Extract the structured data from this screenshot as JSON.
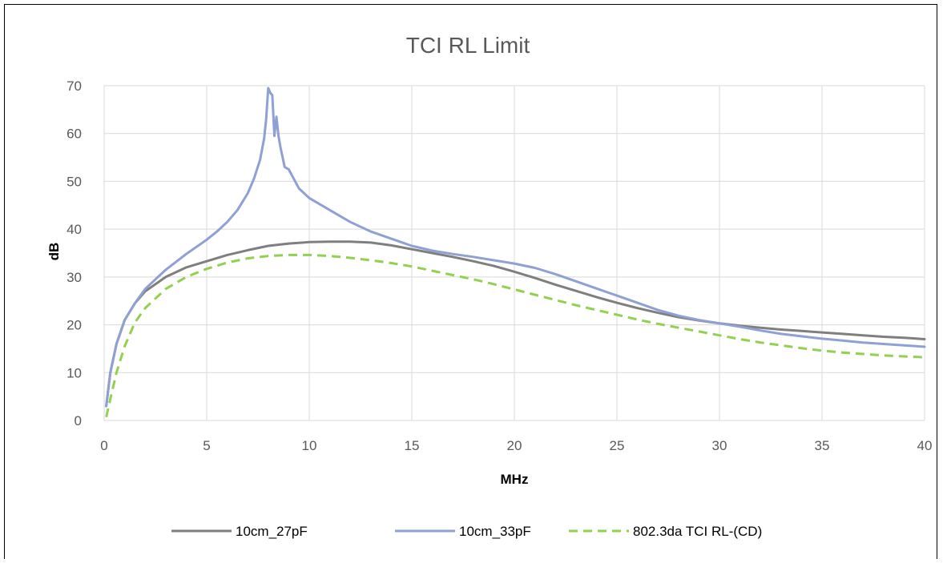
{
  "chart_data": {
    "type": "line",
    "title": "TCI RL Limit",
    "xlabel": "MHz",
    "ylabel": "dB",
    "xlim": [
      0,
      40
    ],
    "ylim": [
      0,
      70
    ],
    "x_ticks": [
      0,
      5,
      10,
      15,
      20,
      25,
      30,
      35,
      40
    ],
    "y_ticks": [
      0,
      10,
      20,
      30,
      40,
      50,
      60,
      70
    ],
    "grid": true,
    "legend_position": "bottom",
    "series": [
      {
        "name": "10cm_27pF",
        "color": "#7f7f7f",
        "style": "solid",
        "x": [
          0.1,
          0.3,
          0.6,
          1,
          1.5,
          2,
          3,
          4,
          5,
          6,
          7,
          8,
          9,
          10,
          11,
          12,
          13,
          14,
          15,
          16,
          17,
          18,
          19,
          20,
          21,
          22,
          23,
          24,
          25,
          26,
          27,
          28,
          29,
          30,
          31,
          32,
          33,
          34,
          35,
          36,
          37,
          38,
          39,
          40
        ],
        "y": [
          3,
          10,
          16,
          21,
          24.5,
          27,
          30,
          32,
          33.3,
          34.6,
          35.6,
          36.5,
          37,
          37.3,
          37.4,
          37.4,
          37.2,
          36.6,
          35.8,
          35,
          34.2,
          33.3,
          32.3,
          31.1,
          29.8,
          28.4,
          27.1,
          25.8,
          24.6,
          23.5,
          22.5,
          21.6,
          20.9,
          20.3,
          19.8,
          19.4,
          19,
          18.7,
          18.4,
          18.1,
          17.8,
          17.5,
          17.3,
          17
        ]
      },
      {
        "name": "10cm_33pF",
        "color": "#8ea0d4",
        "style": "solid",
        "x": [
          0.1,
          0.3,
          0.6,
          1,
          1.5,
          2,
          3,
          4,
          5,
          5.5,
          6,
          6.5,
          7,
          7.3,
          7.6,
          7.8,
          7.9,
          8.0,
          8.1,
          8.2,
          8.3,
          8.4,
          8.5,
          8.6,
          8.8,
          9,
          9.5,
          10,
          11,
          12,
          13,
          14,
          15,
          16,
          17,
          18,
          19,
          20,
          21,
          22,
          23,
          24,
          25,
          26,
          27,
          28,
          29,
          30,
          31,
          32,
          33,
          34,
          35,
          36,
          37,
          38,
          39,
          40
        ],
        "y": [
          3,
          10,
          16,
          21,
          24.5,
          27.5,
          31.5,
          34.8,
          37.8,
          39.5,
          41.5,
          44,
          47.5,
          50.5,
          54.5,
          59,
          63,
          69.5,
          68.5,
          68,
          59.5,
          63.5,
          59.5,
          57,
          53,
          52.5,
          48.5,
          46.5,
          44,
          41.5,
          39.5,
          38,
          36.5,
          35.5,
          34.8,
          34.2,
          33.5,
          32.8,
          31.9,
          30.6,
          29.1,
          27.6,
          26.1,
          24.6,
          23.1,
          21.9,
          21,
          20.3,
          19.6,
          18.8,
          18.1,
          17.6,
          17.1,
          16.7,
          16.3,
          16,
          15.7,
          15.4
        ]
      },
      {
        "name": "802.3da TCI RL-(CD)",
        "color": "#92d050",
        "style": "dashed",
        "x": [
          0.1,
          0.3,
          0.6,
          1,
          1.5,
          2,
          3,
          4,
          5,
          6,
          7,
          8,
          9,
          10,
          11,
          12,
          13,
          14,
          15,
          16,
          17,
          18,
          19,
          20,
          21,
          22,
          23,
          24,
          25,
          26,
          27,
          28,
          29,
          30,
          31,
          32,
          33,
          34,
          35,
          36,
          37,
          38,
          39,
          40
        ],
        "y": [
          0.7,
          4.5,
          10,
          15.5,
          20.5,
          23.5,
          27.5,
          30,
          31.7,
          33,
          33.9,
          34.4,
          34.6,
          34.6,
          34.4,
          34,
          33.5,
          32.9,
          32.2,
          31.3,
          30.4,
          29.5,
          28.5,
          27.4,
          26.3,
          25.2,
          24.1,
          23.1,
          22.1,
          21.1,
          20.2,
          19.4,
          18.6,
          17.8,
          17,
          16.3,
          15.7,
          15.1,
          14.6,
          14.2,
          13.9,
          13.6,
          13.4,
          13.2
        ]
      }
    ]
  }
}
